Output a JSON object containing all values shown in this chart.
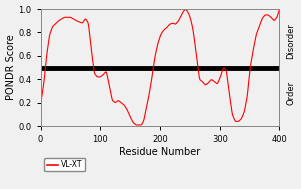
{
  "title": "",
  "xlabel": "Residue Number",
  "ylabel": "PONDR Score",
  "right_label_disorder": "Disorder",
  "right_label_order": "Order",
  "legend_label": "VL-XT",
  "line_color": "#FF0000",
  "threshold_color": "#000000",
  "threshold_value": 0.5,
  "threshold_lw": 3.5,
  "xlim": [
    0,
    400
  ],
  "ylim": [
    0.0,
    1.0
  ],
  "xticks": [
    0,
    100,
    200,
    300,
    400
  ],
  "yticks": [
    0.0,
    0.2,
    0.4,
    0.6,
    0.8,
    1.0
  ],
  "figsize": [
    3.01,
    1.89
  ],
  "dpi": 100,
  "background_color": "#f0f0f0",
  "control_x": [
    1,
    5,
    10,
    15,
    20,
    30,
    40,
    50,
    60,
    70,
    75,
    80,
    85,
    90,
    95,
    100,
    105,
    110,
    115,
    120,
    125,
    130,
    135,
    140,
    145,
    150,
    155,
    160,
    165,
    169,
    173,
    176,
    181,
    186,
    191,
    196,
    201,
    206,
    211,
    216,
    221,
    226,
    231,
    236,
    239,
    243,
    246,
    249,
    253,
    256,
    259,
    263,
    266,
    271,
    276,
    281,
    286,
    291,
    296,
    301,
    306,
    311,
    316,
    321,
    326,
    331,
    336,
    341,
    346,
    351,
    356,
    361,
    366,
    371,
    376,
    381,
    386,
    391,
    396,
    400
  ],
  "control_y": [
    0.22,
    0.35,
    0.6,
    0.78,
    0.85,
    0.9,
    0.93,
    0.93,
    0.9,
    0.88,
    0.92,
    0.88,
    0.65,
    0.45,
    0.42,
    0.42,
    0.44,
    0.47,
    0.35,
    0.22,
    0.2,
    0.22,
    0.2,
    0.18,
    0.14,
    0.08,
    0.03,
    0.01,
    0.01,
    0.01,
    0.05,
    0.13,
    0.25,
    0.4,
    0.58,
    0.7,
    0.78,
    0.82,
    0.84,
    0.87,
    0.88,
    0.87,
    0.9,
    0.95,
    0.98,
    1.0,
    0.98,
    0.95,
    0.88,
    0.8,
    0.68,
    0.52,
    0.4,
    0.38,
    0.35,
    0.37,
    0.4,
    0.38,
    0.36,
    0.42,
    0.5,
    0.48,
    0.28,
    0.1,
    0.04,
    0.04,
    0.06,
    0.12,
    0.25,
    0.5,
    0.65,
    0.78,
    0.85,
    0.92,
    0.95,
    0.95,
    0.93,
    0.9,
    0.93,
    1.0
  ]
}
